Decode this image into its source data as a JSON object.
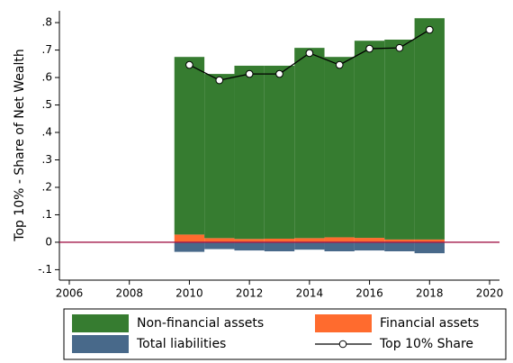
{
  "chart_data": {
    "type": "bar",
    "y_label": "Top 10% - Share of Net Wealth",
    "x": [
      2010,
      2011,
      2012,
      2013,
      2014,
      2015,
      2016,
      2017,
      2018
    ],
    "series": [
      {
        "name": "Non-financial assets",
        "color": "#367c30",
        "values": [
          0.647,
          0.598,
          0.631,
          0.63,
          0.693,
          0.657,
          0.718,
          0.728,
          0.806
        ]
      },
      {
        "name": "Financial assets",
        "color": "#ff6b2e",
        "values": [
          0.028,
          0.015,
          0.012,
          0.013,
          0.015,
          0.018,
          0.016,
          0.01,
          0.01
        ]
      },
      {
        "name": "Total liabilities",
        "color": "#48698a",
        "values": [
          -0.035,
          -0.025,
          -0.03,
          -0.033,
          -0.027,
          -0.033,
          -0.03,
          -0.033,
          -0.04
        ]
      },
      {
        "name": "Top 10% Share",
        "color": "#000000",
        "type": "line",
        "values": [
          0.646,
          0.59,
          0.613,
          0.613,
          0.689,
          0.646,
          0.705,
          0.708,
          0.774
        ]
      }
    ],
    "xlim": [
      2005.67,
      2020.33
    ],
    "xticks": [
      2006,
      2008,
      2010,
      2012,
      2014,
      2016,
      2018,
      2020
    ],
    "ylim": [
      -0.138,
      0.843
    ],
    "yticks": [
      {
        "value": -0.1,
        "label": "-.1"
      },
      0,
      {
        "value": 0.1,
        "label": ".1"
      },
      {
        "value": 0.2,
        "label": ".2"
      },
      {
        "value": 0.3,
        "label": ".3"
      },
      {
        "value": 0.4,
        "label": ".4"
      },
      {
        "value": 0.5,
        "label": ".5"
      },
      {
        "value": 0.6,
        "label": ".6"
      },
      {
        "value": 0.7,
        "label": ".7"
      },
      {
        "value": 0.8,
        "label": ".8"
      }
    ],
    "yline": {
      "value": 0,
      "color": "#a3194a"
    },
    "stacked": true,
    "legend": "bottom"
  }
}
